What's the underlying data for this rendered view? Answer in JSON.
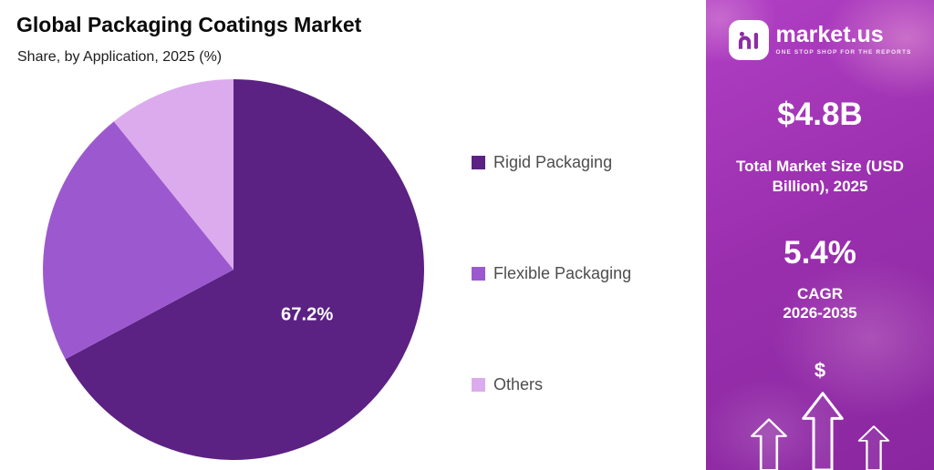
{
  "header": {
    "title": "Global Packaging Coatings Market",
    "subtitle": "Share, by Application, 2025 (%)"
  },
  "chart_data": {
    "type": "pie",
    "title": "Global Packaging Coatings Market",
    "subtitle": "Share, by Application, 2025 (%)",
    "unit": "%",
    "direction": "clockwise",
    "start_angle_deg": 0,
    "legend_position": "right",
    "slices": [
      {
        "label": "Rigid Packaging",
        "value": 67.2,
        "color": "#5b2183",
        "label_text": "67.2%"
      },
      {
        "label": "Flexible Packaging",
        "value": 22.0,
        "color": "#9c59cf",
        "label_text": ""
      },
      {
        "label": "Others",
        "value": 10.8,
        "color": "#dcabee",
        "label_text": ""
      }
    ]
  },
  "sidebar": {
    "brand": {
      "name": "market.us",
      "tagline": "ONE STOP SHOP FOR THE REPORTS"
    },
    "market_size_value": "$4.8B",
    "market_size_label": "Total Market Size (USD Billion), 2025",
    "cagr_value": "5.4%",
    "cagr_label": "CAGR",
    "cagr_period": "2026-2035",
    "dollar_symbol": "$",
    "colors": {
      "panel_purple": "#9a2fae",
      "brand_mark_purple": "#8e2ba6"
    }
  }
}
